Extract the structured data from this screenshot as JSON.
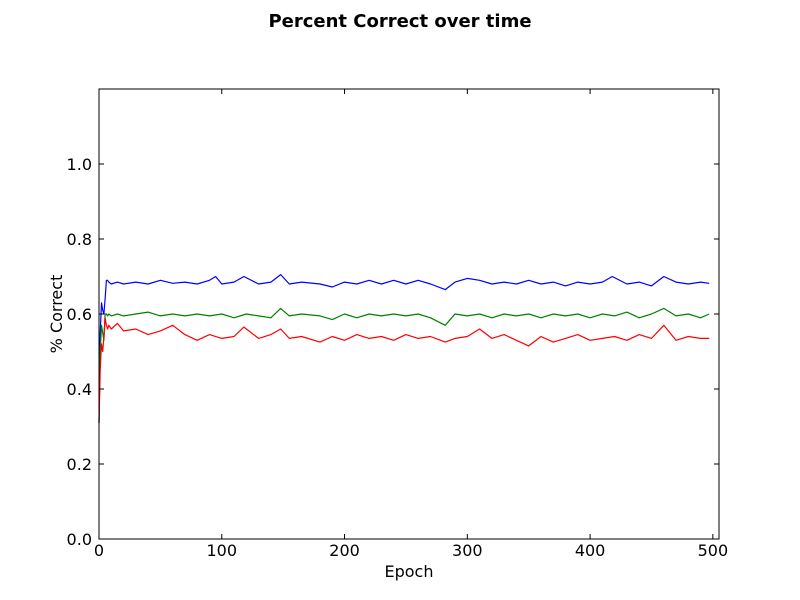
{
  "chart_data": {
    "type": "line",
    "title": "Percent Correct over time",
    "xlabel": "Epoch",
    "ylabel": "% Correct",
    "xlim": [
      0,
      505
    ],
    "ylim": [
      0.0,
      1.2
    ],
    "xticks": [
      0,
      100,
      200,
      300,
      400,
      500
    ],
    "xtick_labels": [
      "0",
      "100",
      "200",
      "300",
      "400",
      "500"
    ],
    "yticks": [
      0.0,
      0.2,
      0.4,
      0.6,
      0.8,
      1.0
    ],
    "ytick_labels": [
      "0.0",
      "0.2",
      "0.4",
      "0.6",
      "0.8",
      "1.0"
    ],
    "grid": false,
    "series": [
      {
        "color": "#0000ff",
        "x": [
          0,
          1,
          2,
          3,
          4,
          5,
          6,
          7,
          8,
          10,
          15,
          20,
          30,
          40,
          50,
          60,
          70,
          80,
          90,
          95,
          100,
          110,
          118,
          130,
          140,
          148,
          155,
          165,
          180,
          190,
          200,
          210,
          220,
          230,
          240,
          250,
          260,
          270,
          282,
          290,
          300,
          310,
          320,
          330,
          340,
          350,
          360,
          370,
          380,
          390,
          400,
          410,
          418,
          430,
          440,
          450,
          460,
          470,
          480,
          490,
          497
        ],
        "y": [
          0.31,
          0.55,
          0.63,
          0.61,
          0.6,
          0.64,
          0.69,
          0.69,
          0.685,
          0.68,
          0.685,
          0.68,
          0.685,
          0.68,
          0.69,
          0.682,
          0.685,
          0.68,
          0.69,
          0.7,
          0.68,
          0.685,
          0.7,
          0.68,
          0.685,
          0.705,
          0.68,
          0.685,
          0.68,
          0.672,
          0.685,
          0.68,
          0.69,
          0.68,
          0.69,
          0.68,
          0.69,
          0.68,
          0.665,
          0.685,
          0.695,
          0.69,
          0.68,
          0.685,
          0.68,
          0.69,
          0.68,
          0.685,
          0.675,
          0.685,
          0.68,
          0.685,
          0.7,
          0.68,
          0.685,
          0.675,
          0.7,
          0.685,
          0.68,
          0.685,
          0.682
        ]
      },
      {
        "color": "#008000",
        "x": [
          0,
          1,
          2,
          3,
          4,
          5,
          6,
          7,
          8,
          10,
          15,
          20,
          30,
          40,
          50,
          60,
          70,
          80,
          90,
          100,
          110,
          120,
          130,
          140,
          148,
          155,
          165,
          180,
          190,
          200,
          210,
          220,
          230,
          240,
          250,
          260,
          270,
          282,
          290,
          300,
          310,
          320,
          330,
          340,
          350,
          360,
          370,
          380,
          390,
          400,
          410,
          420,
          430,
          440,
          450,
          460,
          470,
          480,
          490,
          497
        ],
        "y": [
          0.31,
          0.5,
          0.57,
          0.55,
          0.53,
          0.6,
          0.6,
          0.595,
          0.6,
          0.595,
          0.6,
          0.595,
          0.6,
          0.605,
          0.595,
          0.6,
          0.595,
          0.6,
          0.595,
          0.6,
          0.59,
          0.6,
          0.595,
          0.59,
          0.615,
          0.595,
          0.6,
          0.595,
          0.585,
          0.6,
          0.59,
          0.6,
          0.595,
          0.6,
          0.595,
          0.6,
          0.59,
          0.57,
          0.6,
          0.595,
          0.6,
          0.59,
          0.6,
          0.595,
          0.6,
          0.59,
          0.6,
          0.595,
          0.6,
          0.59,
          0.6,
          0.595,
          0.605,
          0.59,
          0.6,
          0.615,
          0.595,
          0.6,
          0.59,
          0.6
        ]
      },
      {
        "color": "#ff0000",
        "x": [
          0,
          1,
          2,
          3,
          4,
          5,
          6,
          7,
          8,
          10,
          15,
          20,
          30,
          40,
          50,
          60,
          70,
          80,
          90,
          100,
          110,
          118,
          130,
          140,
          148,
          155,
          165,
          180,
          190,
          200,
          210,
          220,
          230,
          240,
          250,
          260,
          270,
          282,
          290,
          300,
          310,
          320,
          330,
          340,
          350,
          360,
          370,
          380,
          390,
          400,
          410,
          420,
          430,
          440,
          450,
          460,
          470,
          480,
          490,
          497
        ],
        "y": [
          0.31,
          0.45,
          0.52,
          0.5,
          0.54,
          0.59,
          0.57,
          0.56,
          0.57,
          0.56,
          0.575,
          0.555,
          0.56,
          0.545,
          0.555,
          0.57,
          0.545,
          0.53,
          0.545,
          0.535,
          0.54,
          0.565,
          0.535,
          0.545,
          0.56,
          0.535,
          0.54,
          0.525,
          0.54,
          0.53,
          0.545,
          0.535,
          0.54,
          0.53,
          0.545,
          0.535,
          0.54,
          0.525,
          0.535,
          0.54,
          0.56,
          0.535,
          0.545,
          0.53,
          0.515,
          0.54,
          0.525,
          0.535,
          0.545,
          0.53,
          0.535,
          0.54,
          0.53,
          0.545,
          0.535,
          0.57,
          0.53,
          0.54,
          0.535,
          0.535
        ]
      }
    ]
  }
}
